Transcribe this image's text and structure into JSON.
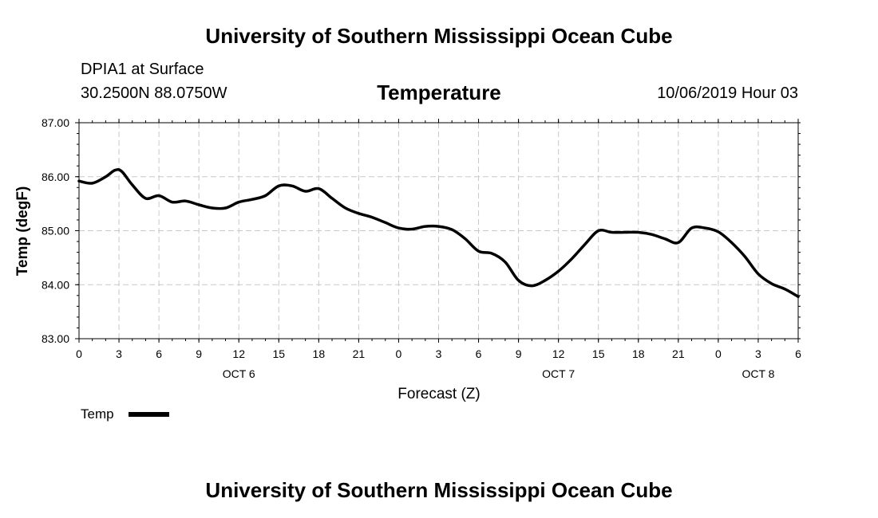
{
  "header": {
    "title": "University of Southern Mississippi Ocean Cube",
    "station": "DPIA1 at Surface",
    "location": "30.2500N 88.0750W",
    "chart_name": "Temperature",
    "datetime": "10/06/2019 Hour 03"
  },
  "footer": {
    "title": "University of Southern Mississippi Ocean Cube"
  },
  "colors": {
    "line": "#000000",
    "grid": "#c8c8c8",
    "background": "#ffffff"
  },
  "chart_data": {
    "type": "line",
    "title": "Temperature",
    "xlabel": "Forecast (Z)",
    "ylabel": "Temp (degF)",
    "xlim": [
      0,
      54
    ],
    "ylim": [
      83.0,
      87.0
    ],
    "grid": true,
    "legend_position": "bottom-left",
    "y_ticks": [
      {
        "value": 83,
        "label": "83.00"
      },
      {
        "value": 84,
        "label": "84.00"
      },
      {
        "value": 85,
        "label": "85.00"
      },
      {
        "value": 86,
        "label": "86.00"
      },
      {
        "value": 87,
        "label": "87.00"
      }
    ],
    "x_ticks": [
      {
        "value": 0,
        "label": "0"
      },
      {
        "value": 3,
        "label": "3"
      },
      {
        "value": 6,
        "label": "6"
      },
      {
        "value": 9,
        "label": "9"
      },
      {
        "value": 12,
        "label": "12"
      },
      {
        "value": 15,
        "label": "15"
      },
      {
        "value": 18,
        "label": "18"
      },
      {
        "value": 21,
        "label": "21"
      },
      {
        "value": 24,
        "label": "0"
      },
      {
        "value": 27,
        "label": "3"
      },
      {
        "value": 30,
        "label": "6"
      },
      {
        "value": 33,
        "label": "9"
      },
      {
        "value": 36,
        "label": "12"
      },
      {
        "value": 39,
        "label": "15"
      },
      {
        "value": 42,
        "label": "18"
      },
      {
        "value": 45,
        "label": "21"
      },
      {
        "value": 48,
        "label": "0"
      },
      {
        "value": 51,
        "label": "3"
      },
      {
        "value": 54,
        "label": "6"
      }
    ],
    "day_labels": [
      {
        "value": 12,
        "label": "OCT 6"
      },
      {
        "value": 36,
        "label": "OCT 7"
      },
      {
        "value": 51,
        "label": "OCT 8"
      }
    ],
    "series": [
      {
        "name": "Temp",
        "x": [
          0,
          1,
          2,
          2.7,
          3.2,
          4,
          5,
          6,
          7,
          8,
          9,
          10,
          11,
          12,
          13,
          14,
          15,
          16,
          17,
          18,
          19,
          20,
          21,
          22,
          23,
          24,
          25,
          26,
          27,
          28,
          29,
          30,
          31,
          32,
          33,
          34,
          35,
          36,
          37,
          38,
          39,
          40,
          41,
          42,
          43,
          44,
          45,
          46,
          47,
          48,
          49,
          50,
          51,
          52,
          53,
          54
        ],
        "values": [
          85.92,
          85.88,
          86.0,
          86.12,
          86.1,
          85.85,
          85.6,
          85.65,
          85.53,
          85.55,
          85.48,
          85.42,
          85.42,
          85.53,
          85.58,
          85.65,
          85.83,
          85.83,
          85.73,
          85.78,
          85.6,
          85.42,
          85.32,
          85.25,
          85.15,
          85.05,
          85.03,
          85.08,
          85.08,
          85.02,
          84.85,
          84.62,
          84.58,
          84.42,
          84.08,
          83.98,
          84.08,
          84.25,
          84.48,
          84.75,
          85.0,
          84.97,
          84.97,
          84.97,
          84.93,
          84.85,
          84.78,
          85.05,
          85.05,
          84.98,
          84.78,
          84.52,
          84.2,
          84.02,
          83.92,
          83.78
        ]
      }
    ]
  }
}
